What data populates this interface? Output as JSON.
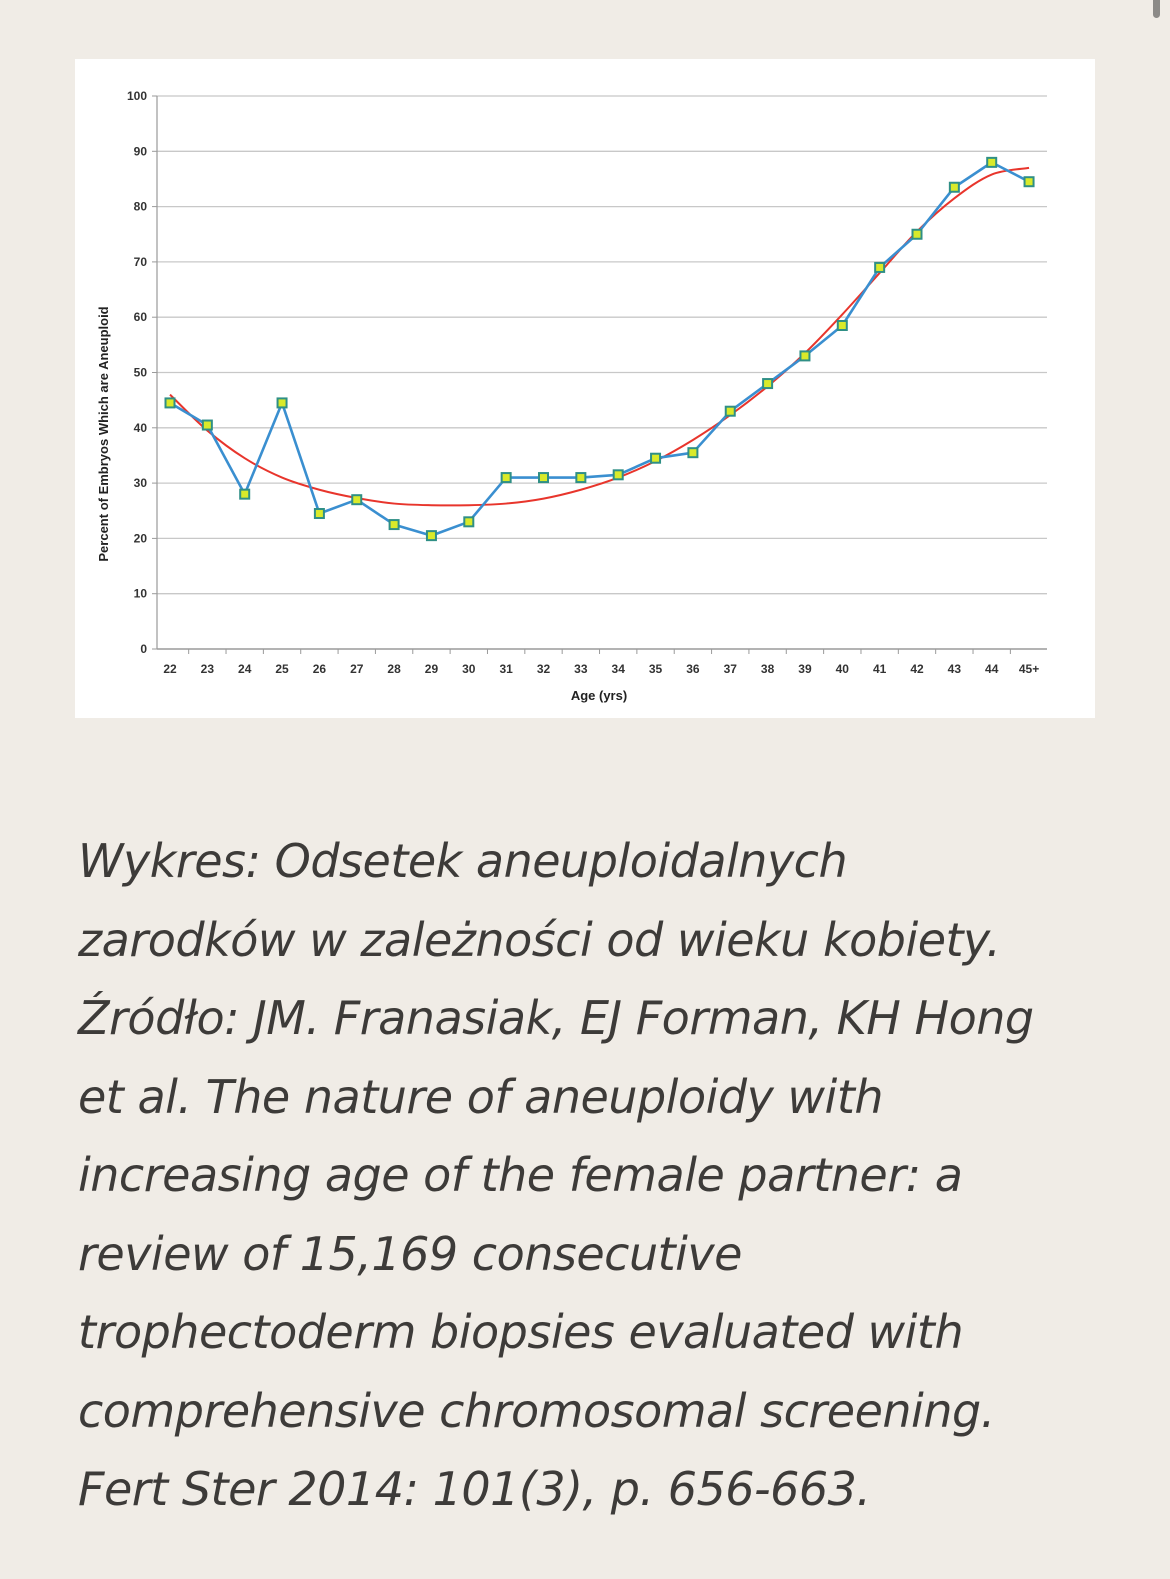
{
  "chart_data": {
    "type": "line",
    "title": "",
    "xlabel": "Age (yrs)",
    "ylabel": "Percent of Embryos Which are Aneuploid",
    "ylim": [
      0,
      100
    ],
    "yticks": [
      0,
      10,
      20,
      30,
      40,
      50,
      60,
      70,
      80,
      90,
      100
    ],
    "grid": true,
    "legend": "none",
    "categories": [
      "22",
      "23",
      "24",
      "25",
      "26",
      "27",
      "28",
      "29",
      "30",
      "31",
      "32",
      "33",
      "34",
      "35",
      "36",
      "37",
      "38",
      "39",
      "40",
      "41",
      "42",
      "43",
      "44",
      "45+"
    ],
    "series": [
      {
        "type": "line",
        "color": "#3a8fd0",
        "marker": "square",
        "marker_fill": "#d9ea2a",
        "marker_edge": "#2f8f86",
        "values": [
          44.5,
          40.5,
          28,
          44.5,
          24.5,
          27,
          22.5,
          20.5,
          23,
          31,
          31,
          31,
          31.5,
          34.5,
          35.5,
          43,
          48,
          53,
          58.5,
          69,
          75,
          83.5,
          88,
          84.5
        ]
      },
      {
        "type": "trendline",
        "color": "#e8352c",
        "values": [
          46,
          39.5,
          34.5,
          31,
          28.8,
          27.3,
          26.3,
          26,
          26,
          26.3,
          27.2,
          28.8,
          31,
          34,
          37.8,
          42.3,
          47.5,
          53.5,
          60.5,
          68,
          75.5,
          81.5,
          85.8,
          87
        ]
      }
    ]
  },
  "caption": {
    "lines": [
      "Wykres: Odsetek aneuploidalnych",
      "zarodków w zależności od wieku kobiety.",
      "Źródło: JM. Franasiak, EJ Forman, KH Hong",
      "et al. The nature of aneuploidy with",
      "increasing age of the female partner: a",
      "review of 15,169 consecutive",
      "trophectoderm biopsies evaluated with",
      "comprehensive chromosomal screening.",
      "Fert Ster 2014: 101(3), p. 656-663."
    ]
  }
}
